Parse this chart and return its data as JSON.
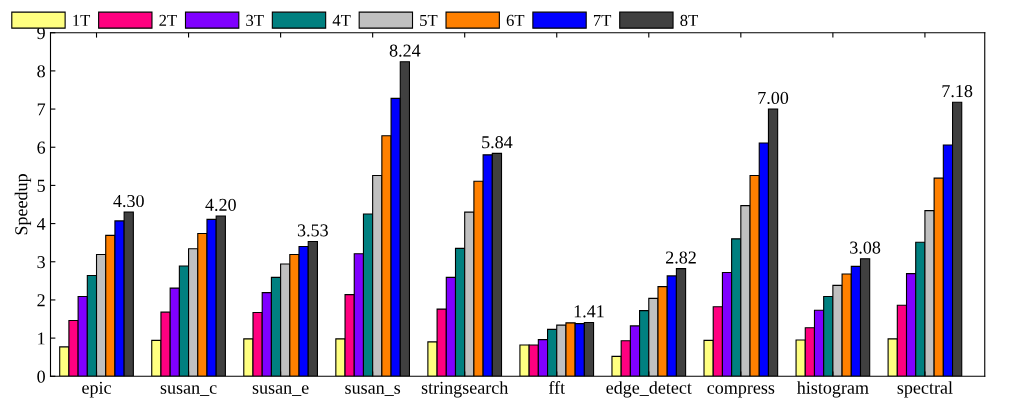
{
  "chart_data": {
    "type": "bar",
    "ylabel": "Speedup",
    "categories": [
      "epic",
      "susan_c",
      "susan_e",
      "susan_s",
      "stringsearch",
      "fft",
      "edge_detect",
      "compress",
      "histogram",
      "spectral"
    ],
    "series": [
      {
        "name": "1T",
        "color": "#ffff80",
        "values": [
          0.77,
          0.94,
          0.98,
          0.98,
          0.9,
          0.82,
          0.52,
          0.94,
          0.95,
          0.98
        ]
      },
      {
        "name": "2T",
        "color": "#ff0080",
        "values": [
          1.46,
          1.68,
          1.67,
          2.14,
          1.76,
          0.82,
          0.93,
          1.82,
          1.27,
          1.86
        ]
      },
      {
        "name": "3T",
        "color": "#8000ff",
        "values": [
          2.09,
          2.31,
          2.19,
          3.21,
          2.59,
          0.96,
          1.32,
          2.72,
          1.73,
          2.69
        ]
      },
      {
        "name": "4T",
        "color": "#008080",
        "values": [
          2.64,
          2.89,
          2.59,
          4.25,
          3.35,
          1.23,
          1.72,
          3.6,
          2.09,
          3.51
        ]
      },
      {
        "name": "5T",
        "color": "#c0c0c0",
        "values": [
          3.19,
          3.34,
          2.94,
          5.26,
          4.3,
          1.34,
          2.04,
          4.47,
          2.38,
          4.34
        ]
      },
      {
        "name": "6T",
        "color": "#ff8000",
        "values": [
          3.69,
          3.74,
          3.19,
          6.3,
          5.11,
          1.4,
          2.35,
          5.26,
          2.68,
          5.19
        ]
      },
      {
        "name": "7T",
        "color": "#0000ff",
        "values": [
          4.07,
          4.11,
          3.4,
          7.28,
          5.8,
          1.38,
          2.63,
          6.11,
          2.88,
          6.06
        ]
      },
      {
        "name": "8T",
        "color": "#404040",
        "values": [
          4.3,
          4.2,
          3.53,
          8.24,
          5.84,
          1.41,
          2.82,
          7.0,
          3.08,
          7.18
        ],
        "value_labels": [
          "4.30",
          "4.20",
          "3.53",
          "8.24",
          "5.84",
          "1.41",
          "2.82",
          "7.00",
          "3.08",
          "7.18"
        ]
      }
    ],
    "ylim": [
      0,
      9
    ],
    "yticks": [
      0,
      1,
      2,
      3,
      4,
      5,
      6,
      7,
      8,
      9
    ],
    "grid": false,
    "legend": "top left"
  }
}
